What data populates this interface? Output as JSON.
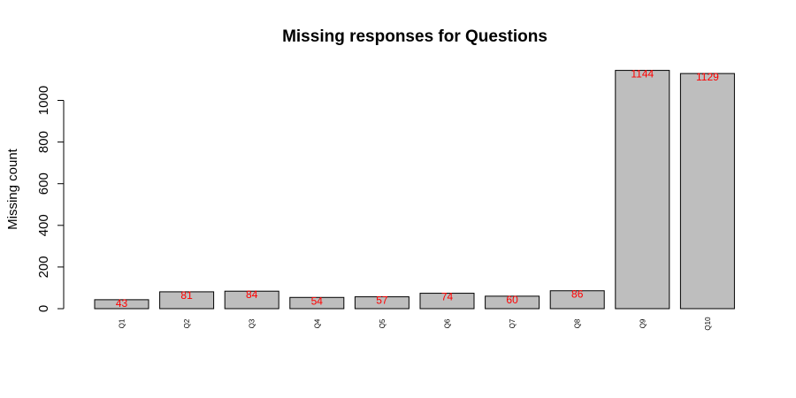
{
  "chart_data": {
    "type": "bar",
    "title": "Missing responses for Questions",
    "xlabel": "",
    "ylabel": "Missing count",
    "categories": [
      "Q1",
      "Q2",
      "Q3",
      "Q4",
      "Q5",
      "Q6",
      "Q7",
      "Q8",
      "Q9",
      "Q10"
    ],
    "values": [
      43,
      81,
      84,
      54,
      57,
      74,
      60,
      86,
      1144,
      1129
    ],
    "yticks": [
      0,
      200,
      400,
      600,
      800,
      1000
    ],
    "ylim": [
      0,
      1144
    ],
    "bar_color": "#bebebe",
    "bar_border_color": "#000000",
    "value_label_color": "#ff0000",
    "grid": false,
    "legend": "none"
  }
}
